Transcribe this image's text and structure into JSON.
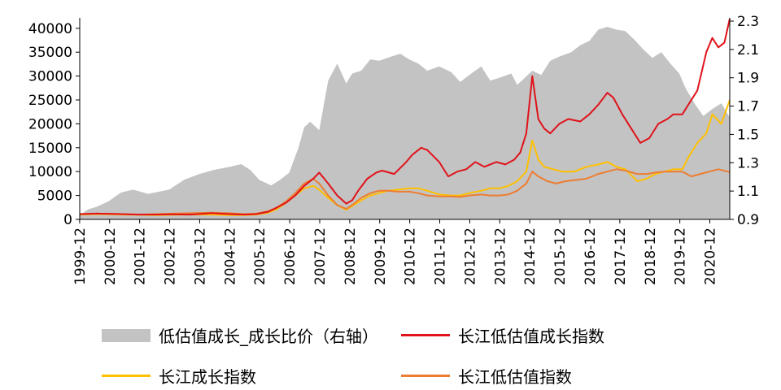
{
  "chart_data": {
    "type": "line",
    "x_tick_labels": [
      "1999-12",
      "2000-12",
      "2001-12",
      "2002-12",
      "2003-12",
      "2004-12",
      "2005-12",
      "2006-12",
      "2007-12",
      "2008-12",
      "2009-12",
      "2010-12",
      "2011-12",
      "2012-12",
      "2013-12",
      "2014-12",
      "2015-12",
      "2016-12",
      "2017-12",
      "2018-12",
      "2019-12",
      "2020-12"
    ],
    "y_left": {
      "ticks": [
        0,
        5000,
        10000,
        15000,
        20000,
        25000,
        30000,
        35000,
        40000
      ],
      "range": [
        0,
        41500
      ]
    },
    "y_right": {
      "ticks": [
        0.9,
        1.1,
        1.3,
        1.5,
        1.7,
        1.9,
        2.1,
        2.3
      ],
      "range": [
        0.9,
        2.3
      ]
    },
    "x_range": [
      1999.92,
      2021.58
    ],
    "series": [
      {
        "name": "低估值成长_成长比价（右轴）",
        "type": "area",
        "axis": "right",
        "color": "#c3c3c3",
        "x": [
          1999.92,
          2000.2,
          2000.5,
          2000.9,
          2001.3,
          2001.7,
          2002.2,
          2002.9,
          2003.4,
          2003.9,
          2004.4,
          2004.9,
          2005.3,
          2005.6,
          2005.9,
          2006.3,
          2006.6,
          2006.9,
          2007.2,
          2007.4,
          2007.6,
          2007.9,
          2008.2,
          2008.5,
          2008.8,
          2009.0,
          2009.3,
          2009.6,
          2009.9,
          2010.3,
          2010.6,
          2010.9,
          2011.2,
          2011.5,
          2011.9,
          2012.3,
          2012.6,
          2012.9,
          2013.3,
          2013.6,
          2013.9,
          2014.3,
          2014.5,
          2014.7,
          2015.0,
          2015.3,
          2015.6,
          2015.9,
          2016.3,
          2016.6,
          2016.9,
          2017.2,
          2017.5,
          2017.8,
          2018.1,
          2018.4,
          2018.7,
          2019.0,
          2019.3,
          2019.6,
          2019.9,
          2020.1,
          2020.4,
          2020.7,
          2021.0,
          2021.3,
          2021.58
        ],
        "y": [
          0.93,
          0.97,
          0.99,
          1.03,
          1.09,
          1.11,
          1.08,
          1.11,
          1.18,
          1.22,
          1.25,
          1.27,
          1.29,
          1.25,
          1.18,
          1.14,
          1.18,
          1.23,
          1.4,
          1.55,
          1.59,
          1.53,
          1.88,
          2.0,
          1.86,
          1.93,
          1.95,
          2.03,
          2.02,
          2.05,
          2.07,
          2.03,
          2.0,
          1.95,
          1.98,
          1.94,
          1.87,
          1.92,
          1.98,
          1.88,
          1.9,
          1.93,
          1.85,
          1.89,
          1.95,
          1.92,
          2.02,
          2.05,
          2.08,
          2.13,
          2.16,
          2.24,
          2.26,
          2.24,
          2.23,
          2.17,
          2.1,
          2.04,
          2.08,
          2.0,
          1.93,
          1.83,
          1.72,
          1.63,
          1.68,
          1.72,
          1.62
        ]
      },
      {
        "name": "长江低估值成长指数",
        "type": "line",
        "axis": "left",
        "color": "#e0121a",
        "x": [
          1999.92,
          2000.5,
          2001.3,
          2001.9,
          2002.5,
          2003.0,
          2003.6,
          2004.3,
          2004.9,
          2005.4,
          2005.8,
          2006.2,
          2006.5,
          2006.8,
          2007.1,
          2007.4,
          2007.7,
          2007.9,
          2008.2,
          2008.5,
          2008.8,
          2009.0,
          2009.2,
          2009.5,
          2009.8,
          2010.0,
          2010.4,
          2010.8,
          2011.0,
          2011.3,
          2011.5,
          2011.9,
          2012.2,
          2012.5,
          2012.8,
          2013.1,
          2013.4,
          2013.8,
          2014.1,
          2014.4,
          2014.6,
          2014.8,
          2015.0,
          2015.2,
          2015.4,
          2015.6,
          2015.9,
          2016.2,
          2016.6,
          2016.9,
          2017.2,
          2017.5,
          2017.7,
          2018.0,
          2018.3,
          2018.6,
          2018.9,
          2019.2,
          2019.5,
          2019.7,
          2020.0,
          2020.2,
          2020.5,
          2020.8,
          2021.0,
          2021.2,
          2021.4,
          2021.58
        ],
        "y": [
          1100,
          1200,
          1100,
          1000,
          1000,
          1050,
          1000,
          1300,
          1100,
          1000,
          1100,
          1600,
          2500,
          3500,
          5000,
          7000,
          8500,
          9800,
          7500,
          5000,
          3300,
          4000,
          6000,
          8500,
          9800,
          10200,
          9500,
          12000,
          13500,
          15000,
          14500,
          12000,
          9000,
          10000,
          10500,
          12000,
          11000,
          12000,
          11500,
          12500,
          14000,
          18000,
          30000,
          21000,
          19000,
          18000,
          20000,
          21000,
          20500,
          22000,
          24000,
          26500,
          25500,
          22000,
          19000,
          16000,
          17000,
          20000,
          21000,
          22000,
          22000,
          24000,
          27000,
          35000,
          38000,
          36000,
          37000,
          42000
        ]
      },
      {
        "name": "长江成长指数",
        "type": "line",
        "axis": "left",
        "color": "#ffc000",
        "x": [
          1999.92,
          2000.5,
          2001.3,
          2001.9,
          2002.5,
          2003.0,
          2003.6,
          2004.3,
          2004.9,
          2005.4,
          2005.8,
          2006.2,
          2006.5,
          2006.8,
          2007.1,
          2007.4,
          2007.7,
          2007.9,
          2008.2,
          2008.5,
          2008.8,
          2009.0,
          2009.3,
          2009.6,
          2009.9,
          2010.2,
          2010.5,
          2010.9,
          2011.2,
          2011.5,
          2011.9,
          2012.3,
          2012.6,
          2012.9,
          2013.3,
          2013.6,
          2013.9,
          2014.2,
          2014.5,
          2014.8,
          2015.0,
          2015.2,
          2015.4,
          2015.7,
          2016.0,
          2016.4,
          2016.8,
          2017.2,
          2017.5,
          2017.8,
          2018.1,
          2018.5,
          2018.8,
          2019.1,
          2019.4,
          2019.7,
          2020.0,
          2020.2,
          2020.5,
          2020.8,
          2021.0,
          2021.3,
          2021.58
        ],
        "y": [
          1000,
          1100,
          1000,
          950,
          900,
          950,
          1000,
          1000,
          900,
          900,
          1000,
          1400,
          2200,
          3500,
          5000,
          6500,
          7000,
          6200,
          4500,
          3000,
          2000,
          2800,
          4000,
          5000,
          5500,
          6000,
          6200,
          6500,
          6500,
          6000,
          5200,
          5000,
          5000,
          5500,
          6000,
          6500,
          6500,
          7000,
          8000,
          10000,
          16500,
          12500,
          11000,
          10500,
          10000,
          10000,
          11000,
          11500,
          12000,
          11000,
          10500,
          8000,
          8500,
          9500,
          10000,
          10500,
          10500,
          13000,
          16000,
          18000,
          22000,
          20000,
          25000
        ]
      },
      {
        "name": "长江低估值指数",
        "type": "line",
        "axis": "left",
        "color": "#ed7d31",
        "x": [
          1999.92,
          2000.5,
          2001.3,
          2001.9,
          2002.5,
          2003.0,
          2003.6,
          2004.3,
          2004.9,
          2005.4,
          2005.8,
          2006.2,
          2006.5,
          2006.8,
          2007.1,
          2007.4,
          2007.7,
          2007.9,
          2008.2,
          2008.5,
          2008.8,
          2009.0,
          2009.3,
          2009.6,
          2009.9,
          2010.2,
          2010.5,
          2010.9,
          2011.2,
          2011.5,
          2011.9,
          2012.3,
          2012.6,
          2012.9,
          2013.3,
          2013.6,
          2013.9,
          2014.2,
          2014.5,
          2014.8,
          2015.0,
          2015.2,
          2015.5,
          2015.8,
          2016.1,
          2016.4,
          2016.8,
          2017.2,
          2017.5,
          2017.8,
          2018.1,
          2018.5,
          2018.8,
          2019.1,
          2019.4,
          2019.7,
          2020.0,
          2020.3,
          2020.6,
          2020.9,
          2021.2,
          2021.58
        ],
        "y": [
          1100,
          1200,
          1100,
          1000,
          1100,
          1200,
          1300,
          1400,
          1300,
          1100,
          1200,
          1700,
          2500,
          3800,
          5500,
          7500,
          8500,
          7500,
          5000,
          3000,
          2200,
          3000,
          4500,
          5500,
          6000,
          6000,
          5800,
          5800,
          5500,
          5000,
          4800,
          4800,
          4700,
          5000,
          5200,
          5000,
          5000,
          5200,
          6000,
          7500,
          10000,
          9000,
          8000,
          7500,
          8000,
          8200,
          8500,
          9500,
          10000,
          10500,
          10200,
          9500,
          9500,
          9800,
          10000,
          10000,
          10000,
          9000,
          9500,
          10000,
          10500,
          9900
        ]
      }
    ],
    "legend": [
      "低估值成长_成长比价（右轴）",
      "长江低估值成长指数",
      "长江成长指数",
      "长江低估值指数"
    ]
  },
  "legend": {
    "area_label": "低估值成长_成长比价（右轴）",
    "red_label": "长江低估值成长指数",
    "yellow_label": "长江成长指数",
    "orange_label": "长江低估值指数"
  }
}
